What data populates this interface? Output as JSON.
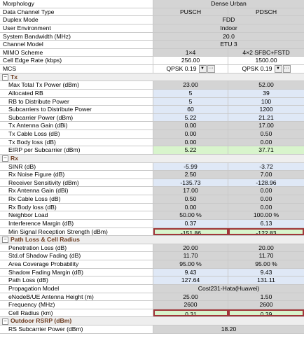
{
  "header_rows": [
    {
      "label": "Morphology",
      "span": "Dense Urban",
      "bg": "g"
    },
    {
      "label": "Data Channel Type",
      "pusch": "PUSCH",
      "pdsch": "PDSCH",
      "bg": "g"
    },
    {
      "label": "Duplex Mode",
      "span": "FDD",
      "bg": "g"
    },
    {
      "label": "User Environment",
      "span": "Indoor",
      "bg": "g"
    },
    {
      "label": "System Bandwidth (MHz)",
      "span": "20.0",
      "bg": "g"
    },
    {
      "label": "Channel Model",
      "span": "ETU 3",
      "bg": "g"
    },
    {
      "label": "MIMO Scheme",
      "pusch": "1×4",
      "pdsch": "4×2 SFBC+FSTD",
      "bg": "g"
    },
    {
      "label": "Cell Edge Rate (kbps)",
      "pusch": "256.00",
      "pdsch": "1500.00",
      "bg": "w"
    }
  ],
  "mcs": {
    "label": "MCS",
    "pusch": "QPSK 0.19",
    "pdsch": "QPSK 0.19",
    "dropdown_icon": "▼",
    "ellipsis": "···"
  },
  "sections": [
    {
      "title": "Tx",
      "rows": [
        {
          "label": "Max Total Tx Power (dBm)",
          "pusch": "23.00",
          "pdsch": "52.00",
          "bg": "g"
        },
        {
          "label": "Allocated RB",
          "pusch": "5",
          "pdsch": "39",
          "bg": "b"
        },
        {
          "label": "RB to Distribute Power",
          "pusch": "5",
          "pdsch": "100",
          "bg": "b"
        },
        {
          "label": "Subcarriers to Distribute Power",
          "pusch": "60",
          "pdsch": "1200",
          "bg": "b"
        },
        {
          "label": "Subcarrier Power (dBm)",
          "pusch": "5.22",
          "pdsch": "21.21",
          "bg": "b"
        },
        {
          "label": "Tx Antenna Gain (dBi)",
          "pusch": "0.00",
          "pdsch": "17.00",
          "bg": "g"
        },
        {
          "label": "Tx Cable Loss (dB)",
          "pusch": "0.00",
          "pdsch": "0.50",
          "bg": "g"
        },
        {
          "label": "Tx Body loss (dB)",
          "pusch": "0.00",
          "pdsch": "0.00",
          "bg": "g"
        },
        {
          "label": "EIRP per Subcarrier (dBm)",
          "pusch": "5.22",
          "pdsch": "37.71",
          "bg": "gr"
        }
      ]
    },
    {
      "title": "Rx",
      "rows": [
        {
          "label": "SINR (dB)",
          "pusch": "-5.99",
          "pdsch": "-3.72",
          "bg": "b"
        },
        {
          "label": "Rx Noise Figure (dB)",
          "pusch": "2.50",
          "pdsch": "7.00",
          "bg": "g"
        },
        {
          "label": "Receiver Sensitivity (dBm)",
          "pusch": "-135.73",
          "pdsch": "-128.96",
          "bg": "b"
        },
        {
          "label": "Rx Antenna Gain (dBi)",
          "pusch": "17.00",
          "pdsch": "0.00",
          "bg": "g"
        },
        {
          "label": "Rx Cable Loss (dB)",
          "pusch": "0.50",
          "pdsch": "0.00",
          "bg": "g"
        },
        {
          "label": "Rx Body loss (dB)",
          "pusch": "0.00",
          "pdsch": "0.00",
          "bg": "g"
        },
        {
          "label": "Neighbor Load",
          "pusch": "50.00 %",
          "pdsch": "100.00 %",
          "bg": "g"
        },
        {
          "label": "Interference Margin (dB)",
          "pusch": "0.37",
          "pdsch": "6.13",
          "bg": "b"
        },
        {
          "label": "Min Signal Reception Strength (dBm)",
          "pusch": "-151.86",
          "pdsch": "-122.83",
          "bg": "gr",
          "highlight": true
        }
      ]
    },
    {
      "title": "Path Loss & Cell Radius",
      "rows": [
        {
          "label": "Penetration Loss (dB)",
          "pusch": "20.00",
          "pdsch": "20.00",
          "bg": "g"
        },
        {
          "label": "Std.of Shadow Fading (dB)",
          "pusch": "11.70",
          "pdsch": "11.70",
          "bg": "g"
        },
        {
          "label": "Area Coverage Probability",
          "pusch": "95.00 %",
          "pdsch": "95.00 %",
          "bg": "g"
        },
        {
          "label": "Shadow Fading Margin (dB)",
          "pusch": "9.43",
          "pdsch": "9.43",
          "bg": "b"
        },
        {
          "label": "Path Loss (dB)",
          "pusch": "127.64",
          "pdsch": "131.11",
          "bg": "b"
        },
        {
          "label": "Propagation Model",
          "span": "Cost231-Hata(Huawei)",
          "bg": "g"
        },
        {
          "label": "eNodeB/UE Antenna Height (m)",
          "pusch": "25.00",
          "pdsch": "1.50",
          "bg": "g"
        },
        {
          "label": "Frequency (MHz)",
          "pusch": "2600",
          "pdsch": "2600",
          "bg": "g"
        },
        {
          "label": "Cell Radius (km)",
          "pusch": "0.31",
          "pdsch": "0.39",
          "bg": "gr",
          "highlight": true
        }
      ]
    },
    {
      "title": "Outdoor RSRP (dBm)",
      "rows": [
        {
          "label": "RS Subcarrier Power (dBm)",
          "span": "18.20",
          "bg": "g"
        }
      ]
    }
  ],
  "collapse_icon": "−"
}
